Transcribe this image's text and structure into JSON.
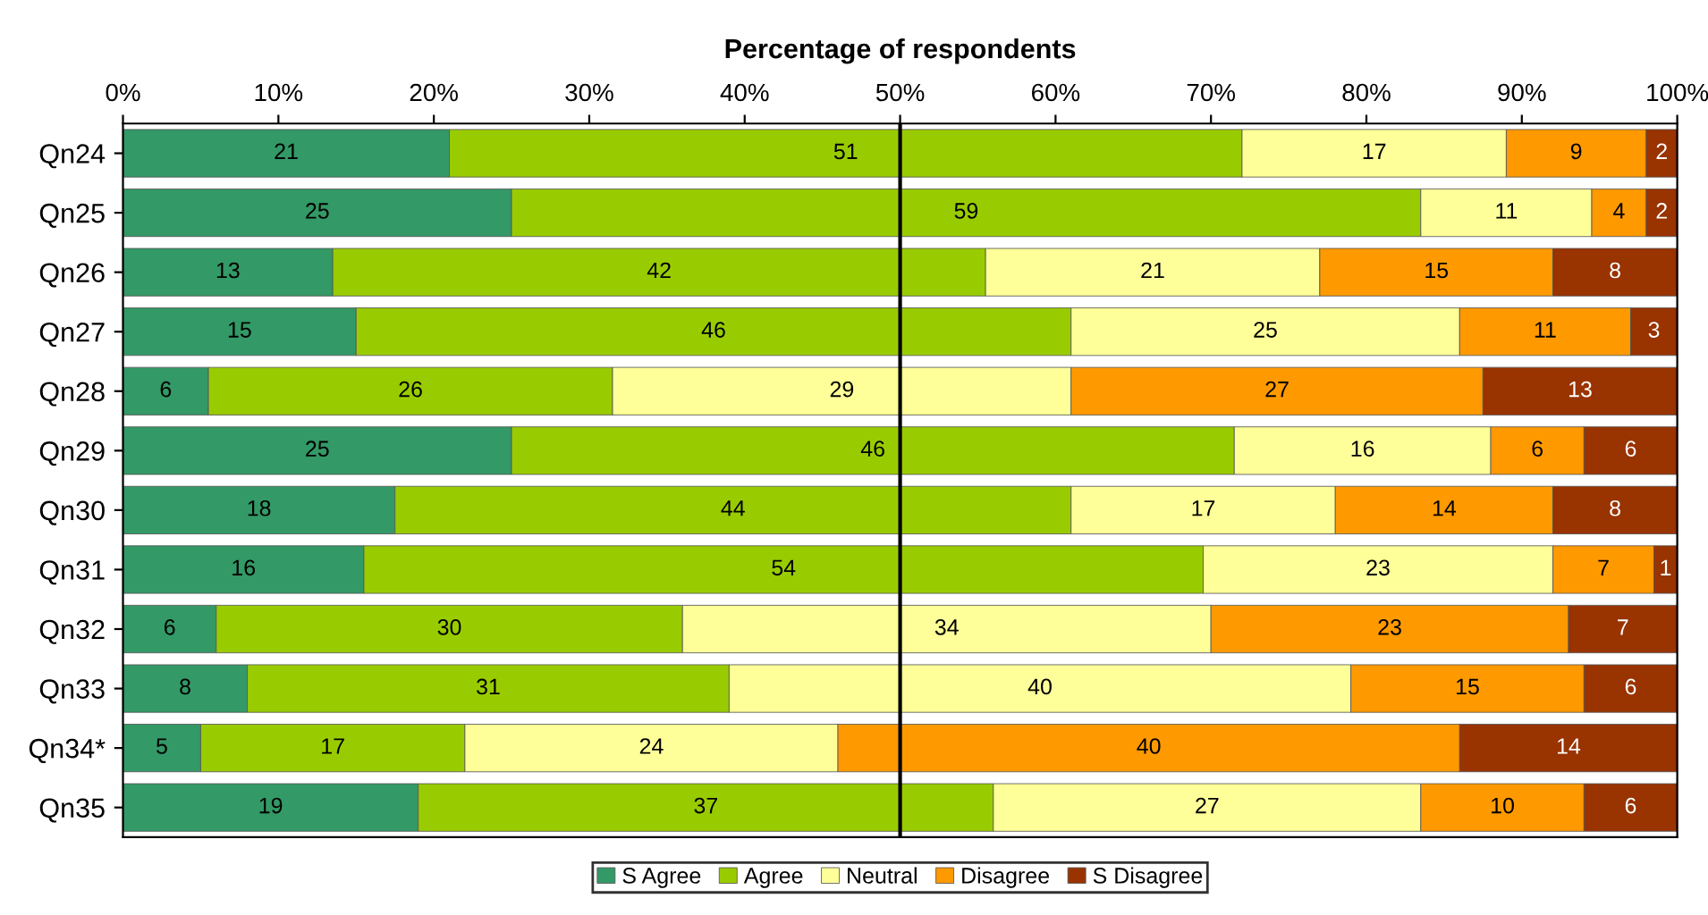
{
  "chart_data": {
    "type": "bar",
    "orientation": "horizontal",
    "stacked": true,
    "xlabel": "Percentage of respondents",
    "categories": [
      "Qn24",
      "Qn25",
      "Qn26",
      "Qn27",
      "Qn28",
      "Qn29",
      "Qn30",
      "Qn31",
      "Qn32",
      "Qn33",
      "Qn34*",
      "Qn35"
    ],
    "xlim": [
      0,
      100
    ],
    "xticks": [
      {
        "value": 0,
        "label": "0%"
      },
      {
        "value": 10,
        "label": "10%"
      },
      {
        "value": 20,
        "label": "20%"
      },
      {
        "value": 30,
        "label": "30%"
      },
      {
        "value": 40,
        "label": "40%"
      },
      {
        "value": 50,
        "label": "50%"
      },
      {
        "value": 60,
        "label": "60%"
      },
      {
        "value": 70,
        "label": "70%"
      },
      {
        "value": 80,
        "label": "80%"
      },
      {
        "value": 90,
        "label": "90%"
      },
      {
        "value": 100,
        "label": "100%"
      }
    ],
    "series": [
      {
        "name": "S Agree",
        "color": "#339966",
        "values": [
          21,
          25,
          13.5,
          15,
          5.5,
          25,
          17.5,
          15.5,
          6,
          8,
          5,
          19
        ],
        "value_labels": [
          "21",
          "25",
          "13",
          "15",
          "6",
          "25",
          "18",
          "16",
          "6",
          "8",
          "5",
          "19"
        ]
      },
      {
        "name": "Agree",
        "color": "#99cc00",
        "values": [
          51,
          58.5,
          42,
          46,
          26,
          46.5,
          43.5,
          54,
          30,
          31,
          17,
          37
        ],
        "value_labels": [
          "51",
          "59",
          "42",
          "46",
          "26",
          "46",
          "44",
          "54",
          "30",
          "31",
          "17",
          "37"
        ]
      },
      {
        "name": "Neutral",
        "color": "#ffff99",
        "values": [
          17,
          11,
          21.5,
          25,
          29.5,
          16.5,
          17,
          22.5,
          34,
          40,
          24,
          27.5
        ],
        "value_labels": [
          "17",
          "11",
          "21",
          "25",
          "29",
          "16",
          "17",
          "23",
          "34",
          "40",
          "24",
          "27"
        ]
      },
      {
        "name": "Disagree",
        "color": "#ff9900",
        "values": [
          9,
          3.5,
          15,
          11,
          26.5,
          6,
          14,
          6.5,
          23,
          15,
          40,
          10.5
        ],
        "value_labels": [
          "9",
          "4",
          "15",
          "11",
          "27",
          "6",
          "14",
          "7",
          "23",
          "15",
          "40",
          "10"
        ]
      },
      {
        "name": "S Disagree",
        "color": "#993300",
        "values": [
          2,
          2,
          8,
          3,
          12.5,
          6,
          8,
          1.5,
          7,
          6,
          14,
          6
        ],
        "value_labels": [
          "2",
          "2",
          "8",
          "3",
          "13",
          "6",
          "8",
          "1",
          "7",
          "6",
          "14",
          "6"
        ]
      }
    ],
    "ref_lines": [
      {
        "axis": "x",
        "value": 50,
        "color": "#000000",
        "line_style": "solid"
      }
    ],
    "legend": "bottom",
    "grid": false
  }
}
